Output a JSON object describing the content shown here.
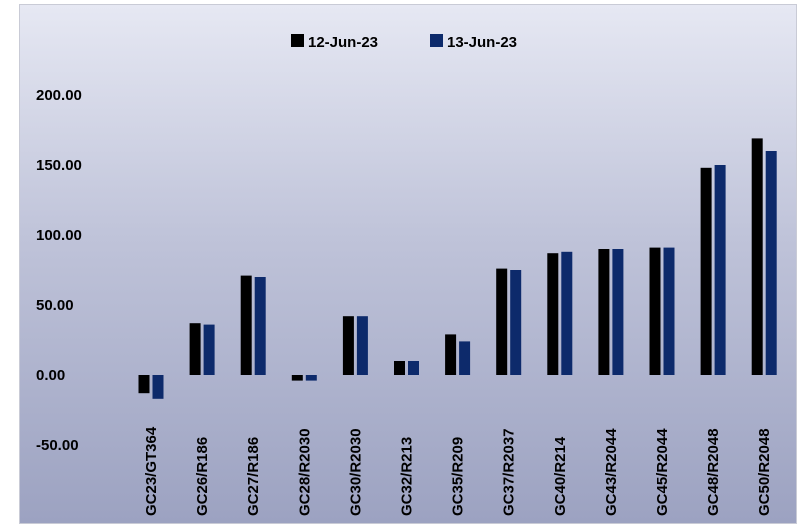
{
  "chart_data": {
    "type": "bar",
    "categories": [
      "GC23/GT364",
      "GC26/R186",
      "GC27/R186",
      "GC28/R2030",
      "GC30/R2030",
      "GC32/R213",
      "GC35/R209",
      "GC37/R2037",
      "GC40/R214",
      "GC43/R2044",
      "GC45/R2044",
      "GC48/R2048",
      "GC50/R2048"
    ],
    "series": [
      {
        "name": "12-Jun-23",
        "color": "#000000",
        "values": [
          -13,
          37,
          71,
          -4,
          42,
          10,
          29,
          76,
          87,
          90,
          91,
          148,
          169
        ]
      },
      {
        "name": "13-Jun-23",
        "color": "#0d2a6b",
        "values": [
          -17,
          36,
          70,
          -4,
          42,
          10,
          24,
          75,
          88,
          90,
          91,
          150,
          160
        ]
      }
    ],
    "yticks": [
      "200.00",
      "150.00",
      "100.00",
      "50.00",
      "0.00",
      "-50.00"
    ],
    "ytick_values": [
      200,
      150,
      100,
      50,
      0,
      -50
    ],
    "ylim": [
      -50,
      200
    ],
    "grid": false,
    "legend_position": "top-center",
    "title": "",
    "xlabel": "",
    "ylabel": ""
  }
}
